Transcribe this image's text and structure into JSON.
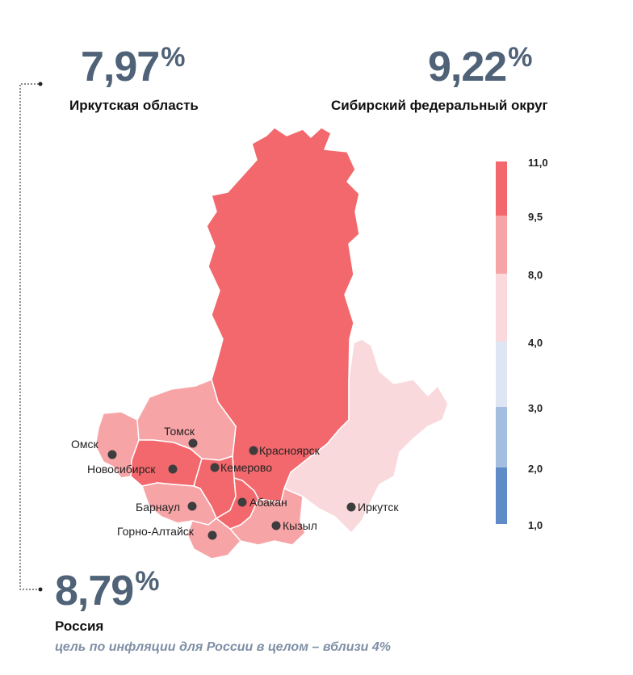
{
  "headline": {
    "irkutsk": {
      "value": "7,97",
      "unit": "%",
      "label": "Иркутская область"
    },
    "siberia": {
      "value": "9,22",
      "unit": "%",
      "label": "Сибирский федеральный округ"
    },
    "russia": {
      "value": "8,79",
      "unit": "%",
      "label": "Россия"
    },
    "goal_text": "цель по инфляции для России в целом – вблизи 4%"
  },
  "legend": {
    "ticks": [
      "11,0",
      "9,5",
      "8,0",
      "4,0",
      "3,0",
      "2,0",
      "1,0"
    ],
    "colors": [
      "#f2686c",
      "#f7a4a7",
      "#f9d9dc",
      "#dde6f2",
      "#a3bedf",
      "#5f8bc6"
    ]
  },
  "map": {
    "regions": [
      {
        "name": "Красноярский край",
        "color": "#f2686c"
      },
      {
        "name": "Иркутская область",
        "color": "#f9d9dc"
      },
      {
        "name": "Омская область",
        "color": "#f7a4a7"
      },
      {
        "name": "Томская область",
        "color": "#f7a4a7"
      },
      {
        "name": "Новосибирская область",
        "color": "#f2686c"
      },
      {
        "name": "Кемеровская область",
        "color": "#f2686c"
      },
      {
        "name": "Алтайский край",
        "color": "#f7a4a7"
      },
      {
        "name": "Республика Алтай",
        "color": "#f7a4a7"
      },
      {
        "name": "Республика Хакасия",
        "color": "#f2686c"
      },
      {
        "name": "Республика Тыва",
        "color": "#f7a4a7"
      }
    ],
    "cities": [
      "Омск",
      "Томск",
      "Новосибирск",
      "Кемерово",
      "Красноярск",
      "Барнаул",
      "Абакан",
      "Горно-Алтайск",
      "Кызыл",
      "Иркутск"
    ]
  }
}
